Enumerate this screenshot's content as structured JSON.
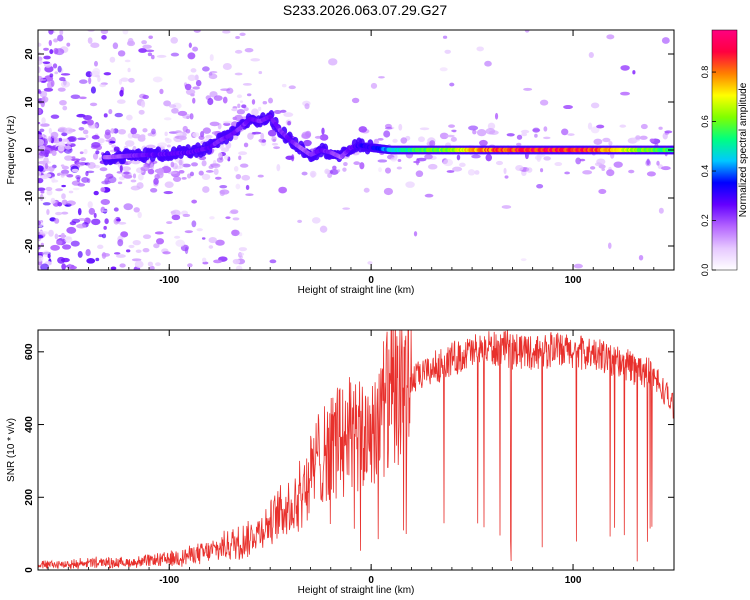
{
  "figure_title": "S233.2026.063.07.29.G27",
  "colors": {
    "signal_line": "#e8302c",
    "axis": "#000000",
    "background": "#ffffff",
    "colormap": [
      "#ffffff",
      "#e6c8ff",
      "#b464ff",
      "#6400ff",
      "#0000ff",
      "#00c8ff",
      "#00ff80",
      "#80ff00",
      "#ffff00",
      "#ff8000",
      "#ff0040",
      "#ff0080"
    ]
  },
  "chart_data": [
    {
      "id": "spectrogram",
      "type": "heatmap",
      "title": "",
      "xlabel": "Height of straight line (km)",
      "ylabel": "Frequency (Hz)",
      "xlim": [
        -165,
        150
      ],
      "ylim": [
        -25,
        25
      ],
      "xticks": [
        {
          "value": -100,
          "label": "-100"
        },
        {
          "value": 0,
          "label": "0"
        },
        {
          "value": 100,
          "label": "100"
        }
      ],
      "yticks": [
        {
          "value": 20,
          "label": "20"
        },
        {
          "value": 10,
          "label": "10"
        },
        {
          "value": 0,
          "label": "0"
        },
        {
          "value": -10,
          "label": "-10"
        },
        {
          "value": -20,
          "label": "-20"
        }
      ],
      "colorbar": {
        "label": "Normalized spectral amplitude",
        "range": [
          0,
          0.97
        ],
        "ticks": [
          {
            "value": 0.0,
            "label": "0.0"
          },
          {
            "value": 0.2,
            "label": "0.2"
          },
          {
            "value": 0.4,
            "label": "0.4"
          },
          {
            "value": 0.6,
            "label": "0.6"
          },
          {
            "value": 0.8,
            "label": "0.8"
          }
        ]
      },
      "ridge": {
        "description": "dominant frequency trace vs height",
        "x": [
          -130,
          -120,
          -110,
          -100,
          -90,
          -80,
          -75,
          -70,
          -65,
          -60,
          -55,
          -50,
          -45,
          -40,
          -35,
          -30,
          -25,
          -20,
          -15,
          -10,
          -5,
          0,
          10,
          20,
          30,
          40,
          50,
          60,
          70,
          80,
          90,
          100,
          110,
          120,
          130,
          140,
          150
        ],
        "freq": [
          -1.5,
          -1.2,
          -1.0,
          -0.8,
          -0.5,
          0.5,
          2.0,
          3.0,
          4.5,
          6.5,
          6.0,
          7.0,
          4.0,
          2.0,
          0.5,
          -1.0,
          0.0,
          -0.5,
          -1.5,
          0.5,
          1.0,
          0.5,
          0.0,
          0.0,
          0.0,
          0.0,
          0.0,
          0.0,
          0.0,
          0.0,
          0.0,
          0.0,
          0.0,
          0.0,
          0.0,
          0.0,
          0.0
        ],
        "amplitude": [
          0.2,
          0.25,
          0.3,
          0.3,
          0.3,
          0.3,
          0.25,
          0.3,
          0.25,
          0.3,
          0.25,
          0.3,
          0.25,
          0.3,
          0.2,
          0.25,
          0.3,
          0.25,
          0.2,
          0.3,
          0.35,
          0.35,
          0.5,
          0.6,
          0.65,
          0.7,
          0.85,
          0.9,
          0.95,
          0.97,
          0.97,
          0.95,
          0.95,
          0.85,
          0.7,
          0.65,
          0.6
        ]
      }
    },
    {
      "id": "snr",
      "type": "line",
      "title": "",
      "xlabel": "Height of straight line (km)",
      "ylabel": "SNR (10 * v/v)",
      "xlim": [
        -165,
        150
      ],
      "ylim": [
        0,
        660
      ],
      "xticks": [
        {
          "value": -100,
          "label": "-100"
        },
        {
          "value": 0,
          "label": "0"
        },
        {
          "value": 100,
          "label": "100"
        }
      ],
      "yticks": [
        {
          "value": 0,
          "label": "0"
        },
        {
          "value": 200,
          "label": "200"
        },
        {
          "value": 400,
          "label": "400"
        },
        {
          "value": 600,
          "label": "600"
        }
      ],
      "series": [
        {
          "name": "SNR",
          "x": [
            -165,
            -150,
            -140,
            -130,
            -120,
            -110,
            -100,
            -90,
            -80,
            -70,
            -60,
            -50,
            -45,
            -40,
            -35,
            -30,
            -25,
            -20,
            -15,
            -10,
            -5,
            0,
            10,
            20,
            30,
            40,
            50,
            60,
            70,
            80,
            90,
            100,
            110,
            120,
            130,
            140,
            150
          ],
          "y": [
            15,
            15,
            20,
            20,
            20,
            25,
            30,
            40,
            50,
            70,
            90,
            130,
            160,
            180,
            210,
            260,
            320,
            340,
            360,
            380,
            350,
            390,
            480,
            520,
            550,
            580,
            600,
            610,
            605,
            600,
            605,
            600,
            590,
            580,
            560,
            530,
            450
          ]
        }
      ]
    }
  ]
}
